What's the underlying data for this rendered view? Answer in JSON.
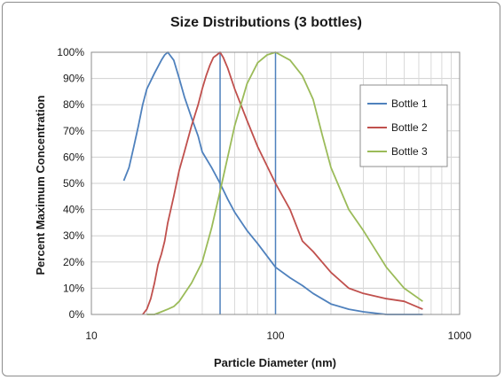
{
  "chart_data": {
    "type": "line",
    "title": "Size Distributions (3 bottles)",
    "xlabel": "Particle Diameter (nm)",
    "ylabel": "Percent Maximum Concentration",
    "x_scale": "log",
    "xlim": [
      10,
      1000
    ],
    "ylim": [
      0,
      100
    ],
    "x_ticks": [
      "10",
      "100",
      "1000"
    ],
    "y_ticks": [
      "0%",
      "10%",
      "20%",
      "30%",
      "40%",
      "50%",
      "60%",
      "70%",
      "80%",
      "90%",
      "100%"
    ],
    "grid": true,
    "legend_position": "right",
    "reference_lines_x": [
      50,
      100
    ],
    "series": [
      {
        "name": "Bottle 1",
        "color": "#4f81bd",
        "x": [
          15,
          16,
          17,
          18,
          19,
          20,
          22,
          24,
          25,
          26,
          28,
          30,
          32,
          35,
          38,
          40,
          45,
          50,
          55,
          60,
          70,
          80,
          100,
          120,
          140,
          160,
          200,
          250,
          300,
          400,
          500,
          630
        ],
        "y": [
          51,
          56,
          64,
          72,
          80,
          86,
          92,
          97,
          99,
          100,
          97,
          90,
          83,
          75,
          68,
          62,
          56,
          50,
          44,
          39,
          32,
          27,
          18,
          14,
          11,
          8,
          4,
          2,
          1,
          0,
          0,
          0
        ]
      },
      {
        "name": "Bottle 2",
        "color": "#c0504d",
        "x": [
          19,
          20,
          21,
          22,
          23,
          24,
          25,
          26,
          28,
          30,
          32,
          35,
          38,
          40,
          42,
          44,
          46,
          48,
          50,
          52,
          55,
          60,
          70,
          80,
          100,
          120,
          140,
          160,
          200,
          250,
          300,
          400,
          500,
          630
        ],
        "y": [
          0,
          2,
          6,
          12,
          19,
          23,
          28,
          35,
          45,
          55,
          62,
          72,
          80,
          86,
          91,
          95,
          98,
          99,
          100,
          98,
          94,
          86,
          74,
          64,
          50,
          40,
          28,
          24,
          16,
          10,
          8,
          6,
          5,
          2
        ]
      },
      {
        "name": "Bottle 3",
        "color": "#9bbb59",
        "x": [
          20,
          22,
          24,
          26,
          28,
          30,
          35,
          40,
          45,
          50,
          55,
          60,
          70,
          80,
          90,
          100,
          120,
          140,
          160,
          180,
          200,
          250,
          300,
          400,
          500,
          630
        ],
        "y": [
          0,
          0,
          1,
          2,
          3,
          5,
          12,
          20,
          33,
          47,
          60,
          72,
          88,
          96,
          99,
          100,
          97,
          91,
          82,
          68,
          56,
          40,
          32,
          18,
          10,
          5
        ]
      }
    ]
  }
}
